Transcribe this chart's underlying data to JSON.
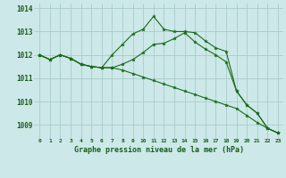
{
  "title": "Graphe pression niveau de la mer (hPa)",
  "bg_color": "#cce8e8",
  "grid_color": "#aacccc",
  "line_color": "#1a6b1a",
  "xlim": [
    -0.5,
    23.5
  ],
  "ylim": [
    1008.4,
    1014.2
  ],
  "yticks": [
    1009,
    1010,
    1011,
    1012,
    1013,
    1014
  ],
  "xtick_labels": [
    "0",
    "1",
    "2",
    "3",
    "4",
    "5",
    "6",
    "7",
    "8",
    "9",
    "10",
    "11",
    "12",
    "13",
    "14",
    "15",
    "16",
    "17",
    "18",
    "19",
    "20",
    "21",
    "22",
    "23"
  ],
  "series": [
    [
      1012.0,
      1011.8,
      1012.0,
      1011.85,
      1011.6,
      1011.5,
      1011.45,
      1011.45,
      1011.35,
      1011.2,
      1011.05,
      1010.9,
      1010.75,
      1010.6,
      1010.45,
      1010.3,
      1010.15,
      1010.0,
      1009.85,
      1009.7,
      1009.4,
      1009.1,
      1008.85,
      1008.65
    ],
    [
      1012.0,
      1011.8,
      1012.0,
      1011.85,
      1011.6,
      1011.5,
      1011.45,
      1011.45,
      1011.6,
      1011.8,
      1012.1,
      1012.45,
      1012.5,
      1012.7,
      1012.95,
      1012.55,
      1012.25,
      1012.0,
      1011.7,
      1010.45,
      1009.85,
      1009.5,
      1008.85,
      1008.65
    ],
    [
      1012.0,
      1011.8,
      1012.0,
      1011.85,
      1011.6,
      1011.5,
      1011.45,
      1012.0,
      1012.45,
      1012.9,
      1013.1,
      1013.65,
      1013.1,
      1013.0,
      1013.0,
      1012.95,
      1012.6,
      1012.3,
      1012.15,
      1010.45,
      1009.85,
      1009.5,
      1008.85,
      1008.65
    ]
  ]
}
